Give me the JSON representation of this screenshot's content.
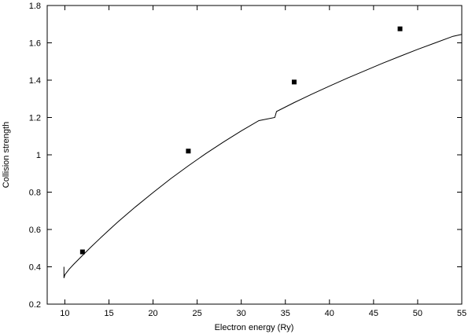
{
  "chart_data": {
    "type": "scatter",
    "title": "",
    "xlabel": "Electron energy (Ry)",
    "ylabel": "Collision strength",
    "xlim": [
      8,
      55
    ],
    "ylim": [
      0.2,
      1.8
    ],
    "grid": false,
    "legend": "none",
    "x_ticks": [
      10,
      15,
      20,
      25,
      30,
      35,
      40,
      45,
      50,
      55
    ],
    "x_tick_labels": [
      "10",
      "15",
      "20",
      "25",
      "30",
      "35",
      "40",
      "45",
      "50",
      "55"
    ],
    "y_ticks": [
      0.2,
      0.4,
      0.6,
      0.8,
      1.0,
      1.2,
      1.4,
      1.6,
      1.8
    ],
    "y_tick_labels": [
      "0.2",
      "0.4",
      "0.6",
      "0.8",
      "1",
      "1.2",
      "1.4",
      "1.6",
      "1.8"
    ],
    "series": [
      {
        "kind": "line",
        "color": "#000000",
        "points": [
          [
            9.9,
            0.4
          ],
          [
            9.9,
            0.34
          ],
          [
            10.0,
            0.357
          ],
          [
            10.5,
            0.388
          ],
          [
            11,
            0.413
          ],
          [
            12,
            0.461
          ],
          [
            13,
            0.508
          ],
          [
            14,
            0.553
          ],
          [
            15,
            0.597
          ],
          [
            16,
            0.64
          ],
          [
            18,
            0.721
          ],
          [
            20,
            0.798
          ],
          [
            22,
            0.872
          ],
          [
            24,
            0.941
          ],
          [
            26,
            1.007
          ],
          [
            28,
            1.069
          ],
          [
            30,
            1.128
          ],
          [
            32,
            1.183
          ],
          [
            33.8,
            1.2
          ],
          [
            34,
            1.232
          ],
          [
            36,
            1.28
          ],
          [
            38,
            1.325
          ],
          [
            40,
            1.368
          ],
          [
            42,
            1.41
          ],
          [
            44,
            1.45
          ],
          [
            46,
            1.49
          ],
          [
            48,
            1.528
          ],
          [
            50,
            1.565
          ],
          [
            52,
            1.6
          ],
          [
            54,
            1.635
          ],
          [
            55,
            1.645
          ]
        ]
      },
      {
        "kind": "markers",
        "marker": "square",
        "color": "#000000",
        "points": [
          [
            12,
            0.48
          ],
          [
            24,
            1.02
          ],
          [
            36,
            1.39
          ],
          [
            48,
            1.675
          ]
        ]
      }
    ]
  }
}
